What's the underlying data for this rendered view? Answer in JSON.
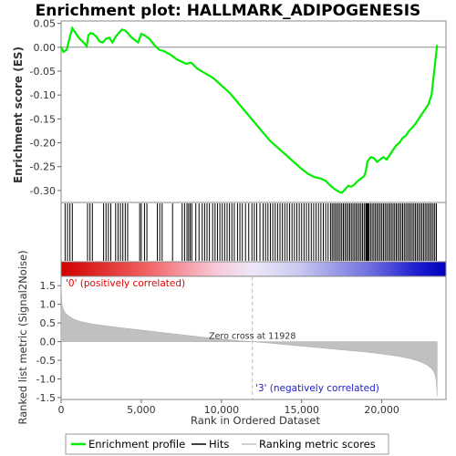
{
  "chart_data": {
    "type": "line",
    "title": "Enrichment plot: HALLMARK_ADIPOGENESIS",
    "colors": {
      "enrichment_line": "#00ee00",
      "hits": "#000000",
      "metric_fill": "#c0c0c0",
      "positive_label": "#e00000",
      "negative_label": "#2020d0",
      "heat_positive": "#e00000",
      "heat_negative": "#0000d0"
    },
    "top_panel": {
      "ylabel": "Enrichment score (ES)",
      "ylim": [
        -0.325,
        0.055
      ],
      "yticks": [
        0.05,
        0.0,
        -0.05,
        -0.1,
        -0.15,
        -0.2,
        -0.25,
        -0.3
      ],
      "ytick_labels": [
        "0.05",
        "0.00",
        "-0.05",
        "-0.10",
        "-0.15",
        "-0.20",
        "-0.25",
        "-0.30"
      ],
      "series": [
        {
          "name": "Enrichment profile",
          "x": [
            0,
            150,
            350,
            500,
            700,
            900,
            1150,
            1400,
            1600,
            1700,
            1850,
            2000,
            2200,
            2400,
            2600,
            2800,
            3000,
            3200,
            3400,
            3600,
            3800,
            4000,
            4200,
            4400,
            4600,
            4800,
            5000,
            5200,
            5500,
            5800,
            6100,
            6400,
            6800,
            7200,
            7500,
            7800,
            8100,
            8500,
            9000,
            9500,
            10000,
            10500,
            11000,
            11500,
            12000,
            12500,
            13000,
            13500,
            14000,
            14500,
            15000,
            15400,
            15800,
            16200,
            16500,
            16800,
            17100,
            17300,
            17500,
            17700,
            17900,
            18100,
            18300,
            18500,
            18700,
            18900,
            19000,
            19100,
            19300,
            19500,
            19700,
            19900,
            20100,
            20300,
            20500,
            20700,
            20900,
            21100,
            21300,
            21500,
            21700,
            21900,
            22100,
            22300,
            22500,
            22700,
            22900,
            23100,
            23200,
            23300,
            23400,
            23450
          ],
          "y": [
            0.0,
            -0.01,
            -0.005,
            0.015,
            0.04,
            0.03,
            0.018,
            0.01,
            0.002,
            0.025,
            0.03,
            0.028,
            0.022,
            0.012,
            0.01,
            0.018,
            0.02,
            0.01,
            0.022,
            0.03,
            0.037,
            0.035,
            0.028,
            0.02,
            0.015,
            0.01,
            0.028,
            0.025,
            0.018,
            0.005,
            -0.005,
            -0.008,
            -0.015,
            -0.025,
            -0.03,
            -0.035,
            -0.032,
            -0.045,
            -0.055,
            -0.065,
            -0.08,
            -0.095,
            -0.115,
            -0.135,
            -0.155,
            -0.175,
            -0.195,
            -0.21,
            -0.225,
            -0.24,
            -0.255,
            -0.265,
            -0.272,
            -0.275,
            -0.28,
            -0.29,
            -0.298,
            -0.302,
            -0.305,
            -0.298,
            -0.29,
            -0.292,
            -0.287,
            -0.28,
            -0.275,
            -0.27,
            -0.26,
            -0.24,
            -0.23,
            -0.232,
            -0.24,
            -0.235,
            -0.23,
            -0.235,
            -0.225,
            -0.215,
            -0.205,
            -0.2,
            -0.19,
            -0.185,
            -0.175,
            -0.168,
            -0.16,
            -0.15,
            -0.14,
            -0.13,
            -0.12,
            -0.1,
            -0.07,
            -0.04,
            -0.01,
            0.005
          ]
        }
      ]
    },
    "hits_panel": {
      "hit_positions": [
        250,
        400,
        550,
        700,
        1650,
        1800,
        1950,
        2650,
        2800,
        2950,
        3100,
        3400,
        3550,
        3700,
        3850,
        4000,
        4150,
        4900,
        5000,
        5200,
        5350,
        6000,
        6150,
        6300,
        6950,
        7550,
        7700,
        7850,
        7950,
        8050,
        8150,
        8400,
        8600,
        8800,
        8950,
        9100,
        9250,
        9450,
        9600,
        9750,
        9900,
        10050,
        10200,
        10350,
        10500,
        10650,
        10800,
        11000,
        11150,
        11300,
        11500,
        11700,
        11900,
        12050,
        12200,
        12400,
        12600,
        12750,
        12900,
        13050,
        13200,
        13350,
        13500,
        13650,
        13800,
        13950,
        14100,
        14250,
        14400,
        14550,
        14700,
        14850,
        15000,
        15150,
        15300,
        15450,
        15600,
        15750,
        15900,
        16050,
        16200,
        16350,
        16500,
        16650,
        16800,
        16900,
        17000,
        17100,
        17200,
        17300,
        17400,
        17500,
        17600,
        17700,
        17800,
        17900,
        18000,
        18100,
        18200,
        18300,
        18400,
        18500,
        18600,
        18700,
        18800,
        18900,
        19000,
        19050,
        19100,
        19150,
        19200,
        19300,
        19400,
        19500,
        19600,
        19700,
        19800,
        19900,
        20000,
        20100,
        20200,
        20300,
        20400,
        20500,
        20600,
        20700,
        20800,
        20900,
        21000,
        21100,
        21200,
        21300,
        21400,
        21500,
        21600,
        21700,
        21800,
        21900,
        22000,
        22100,
        22200,
        22300,
        22400,
        22500,
        22600,
        22700,
        22800,
        22900,
        23000,
        23100,
        23200,
        23300,
        23400
      ]
    },
    "bottom_panel": {
      "xlabel": "Rank in Ordered Dataset",
      "ylabel": "Ranked list metric (Signal2Noise)",
      "xlim": [
        0,
        24000
      ],
      "ylim": [
        -1.55,
        1.75
      ],
      "xticks": [
        0,
        5000,
        10000,
        15000,
        20000
      ],
      "xtick_labels": [
        "0",
        "5,000",
        "10,000",
        "15,000",
        "20,000"
      ],
      "yticks": [
        1.5,
        1.0,
        0.5,
        0.0,
        -0.5,
        -1.0,
        -1.5
      ],
      "ytick_labels": [
        "1.5",
        "1.0",
        "0.5",
        "0.0",
        "-0.5",
        "-1.0",
        "-1.5"
      ],
      "metric_x": [
        0,
        50,
        150,
        300,
        500,
        800,
        1200,
        2000,
        3000,
        4000,
        5000,
        6000,
        7000,
        8000,
        9000,
        10000,
        11000,
        11928,
        13000,
        14000,
        15000,
        16000,
        17000,
        18000,
        19000,
        20000,
        21000,
        21800,
        22400,
        22800,
        23100,
        23300,
        23400,
        23450
      ],
      "metric_y": [
        1.55,
        1.0,
        0.85,
        0.75,
        0.68,
        0.6,
        0.54,
        0.47,
        0.41,
        0.36,
        0.31,
        0.26,
        0.21,
        0.16,
        0.11,
        0.07,
        0.03,
        0.0,
        -0.04,
        -0.08,
        -0.12,
        -0.16,
        -0.2,
        -0.24,
        -0.28,
        -0.33,
        -0.39,
        -0.46,
        -0.54,
        -0.62,
        -0.72,
        -0.85,
        -1.05,
        -1.45
      ],
      "zero_cross": 11928,
      "zero_cross_label": "Zero cross at 11928",
      "positive_label": "'0' (positively correlated)",
      "negative_label": "'3' (negatively correlated)"
    },
    "legend": {
      "placement": "bottom",
      "items": [
        "Enrichment profile",
        "Hits",
        "Ranking metric scores"
      ]
    }
  }
}
